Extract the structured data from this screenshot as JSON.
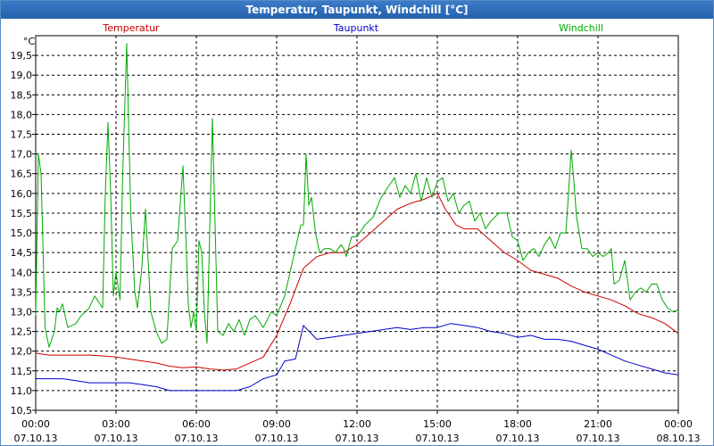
{
  "window": {
    "title": "Temperatur, Taupunkt, Windchill [°C]"
  },
  "chart_data": {
    "type": "line",
    "title": "Temperatur, Taupunkt, Windchill [°C]",
    "ylabel": "°C",
    "xlabel": "",
    "ylim": [
      10.5,
      20.0
    ],
    "xlim": [
      0,
      24
    ],
    "grid": true,
    "y_ticks": [
      "10,5",
      "11,0",
      "11,5",
      "12,0",
      "12,5",
      "13,0",
      "13,5",
      "14,0",
      "14,5",
      "15,0",
      "15,5",
      "16,0",
      "16,5",
      "17,0",
      "17,5",
      "18,0",
      "18,5",
      "19,0",
      "19,5"
    ],
    "x_ticks": [
      {
        "time": "00:00",
        "date": "07.10.13"
      },
      {
        "time": "03:00",
        "date": "07.10.13"
      },
      {
        "time": "06:00",
        "date": "07.10.13"
      },
      {
        "time": "09:00",
        "date": "07.10.13"
      },
      {
        "time": "12:00",
        "date": "07.10.13"
      },
      {
        "time": "15:00",
        "date": "07.10.13"
      },
      {
        "time": "18:00",
        "date": "07.10.13"
      },
      {
        "time": "21:00",
        "date": "07.10.13"
      },
      {
        "time": "00:00",
        "date": "08.10.13"
      }
    ],
    "series": [
      {
        "name": "Temperatur",
        "color": "#cc0000",
        "x": [
          0,
          0.5,
          1,
          1.5,
          2,
          2.5,
          3,
          3.5,
          4,
          4.5,
          5,
          5.5,
          6,
          6.5,
          7,
          7.5,
          8,
          8.5,
          9,
          9.5,
          10,
          10.5,
          11,
          11.5,
          12,
          12.5,
          13,
          13.5,
          14,
          14.5,
          15,
          15.3,
          15.7,
          16,
          16.5,
          17,
          17.5,
          18,
          18.5,
          19,
          19.5,
          20,
          20.5,
          21,
          21.5,
          22,
          22.5,
          23,
          23.5,
          24
        ],
        "values": [
          11.95,
          11.9,
          11.9,
          11.9,
          11.9,
          11.88,
          11.85,
          11.8,
          11.75,
          11.7,
          11.62,
          11.58,
          11.6,
          11.55,
          11.52,
          11.55,
          11.7,
          11.85,
          12.4,
          13.2,
          14.1,
          14.4,
          14.5,
          14.5,
          14.7,
          15.0,
          15.3,
          15.6,
          15.75,
          15.85,
          16.0,
          15.6,
          15.2,
          15.1,
          15.1,
          14.8,
          14.5,
          14.3,
          14.05,
          13.95,
          13.85,
          13.65,
          13.5,
          13.4,
          13.3,
          13.15,
          12.95,
          12.85,
          12.7,
          12.45
        ]
      },
      {
        "name": "Taupunkt",
        "color": "#0000cc",
        "x": [
          0,
          0.5,
          1,
          1.5,
          2,
          2.5,
          3,
          3.5,
          4,
          4.5,
          5,
          5.5,
          6,
          6.5,
          7,
          7.5,
          8,
          8.5,
          9,
          9.3,
          9.7,
          10,
          10.5,
          11,
          11.5,
          12,
          12.5,
          13,
          13.5,
          14,
          14.5,
          15,
          15.5,
          16,
          16.5,
          17,
          17.5,
          18,
          18.5,
          19,
          19.5,
          20,
          20.5,
          21,
          21.5,
          22,
          22.5,
          23,
          23.5,
          24
        ],
        "values": [
          11.3,
          11.3,
          11.3,
          11.25,
          11.2,
          11.2,
          11.2,
          11.2,
          11.15,
          11.1,
          11.0,
          11.0,
          11.0,
          11.0,
          11.0,
          11.0,
          11.1,
          11.3,
          11.4,
          11.75,
          11.8,
          12.65,
          12.3,
          12.35,
          12.4,
          12.45,
          12.5,
          12.55,
          12.6,
          12.55,
          12.6,
          12.6,
          12.7,
          12.65,
          12.6,
          12.5,
          12.45,
          12.35,
          12.4,
          12.3,
          12.3,
          12.25,
          12.15,
          12.05,
          11.9,
          11.75,
          11.65,
          11.55,
          11.45,
          11.4
        ]
      },
      {
        "name": "Windchill",
        "color": "#00aa00",
        "x": [
          0,
          0.1,
          0.2,
          0.35,
          0.5,
          0.7,
          0.8,
          0.9,
          1.0,
          1.2,
          1.5,
          1.7,
          2.0,
          2.2,
          2.4,
          2.5,
          2.6,
          2.7,
          2.8,
          2.9,
          3.0,
          3.15,
          3.25,
          3.4,
          3.55,
          3.7,
          3.8,
          3.95,
          4.1,
          4.3,
          4.5,
          4.7,
          4.9,
          5.1,
          5.3,
          5.5,
          5.6,
          5.7,
          5.8,
          5.9,
          6.0,
          6.1,
          6.2,
          6.3,
          6.4,
          6.6,
          6.8,
          7.0,
          7.2,
          7.4,
          7.6,
          7.8,
          8.0,
          8.2,
          8.5,
          8.8,
          9.0,
          9.3,
          9.5,
          9.7,
          9.9,
          10.0,
          10.1,
          10.2,
          10.3,
          10.45,
          10.6,
          10.8,
          11.0,
          11.2,
          11.4,
          11.5,
          11.6,
          11.8,
          12.0,
          12.3,
          12.6,
          12.9,
          13.2,
          13.4,
          13.6,
          13.8,
          14.0,
          14.2,
          14.4,
          14.6,
          14.8,
          15.0,
          15.2,
          15.4,
          15.6,
          15.8,
          16.0,
          16.2,
          16.4,
          16.6,
          16.8,
          17.0,
          17.3,
          17.6,
          17.8,
          18.0,
          18.2,
          18.4,
          18.6,
          18.8,
          19.0,
          19.2,
          19.4,
          19.6,
          19.8,
          19.9,
          20.0,
          20.1,
          20.2,
          20.3,
          20.4,
          20.6,
          20.8,
          21.0,
          21.2,
          21.4,
          21.5,
          21.6,
          21.8,
          22.0,
          22.2,
          22.4,
          22.6,
          22.8,
          23.0,
          23.2,
          23.4,
          23.6,
          23.8,
          24.0
        ],
        "values": [
          12.9,
          17.0,
          16.5,
          12.6,
          12.1,
          12.5,
          13.1,
          13.0,
          13.2,
          12.6,
          12.7,
          12.9,
          13.1,
          13.4,
          13.2,
          13.1,
          16.0,
          17.8,
          16.0,
          13.4,
          14.0,
          13.3,
          16.5,
          19.8,
          15.5,
          13.5,
          13.1,
          14.0,
          15.6,
          13.0,
          12.5,
          12.2,
          12.3,
          14.6,
          14.8,
          16.7,
          15.0,
          13.2,
          12.6,
          13.0,
          12.5,
          14.8,
          14.5,
          13.0,
          12.2,
          17.9,
          12.5,
          12.4,
          12.7,
          12.5,
          12.8,
          12.4,
          12.8,
          12.9,
          12.6,
          13.0,
          12.9,
          13.4,
          14.0,
          14.6,
          15.2,
          15.2,
          17.0,
          15.7,
          15.9,
          15.0,
          14.5,
          14.6,
          14.6,
          14.5,
          14.7,
          14.6,
          14.4,
          14.9,
          14.9,
          15.2,
          15.4,
          15.9,
          16.2,
          16.4,
          15.9,
          16.2,
          16.0,
          16.5,
          15.8,
          16.4,
          15.9,
          16.3,
          16.4,
          15.8,
          16.0,
          15.5,
          15.7,
          15.8,
          15.3,
          15.5,
          15.1,
          15.3,
          15.5,
          15.5,
          14.9,
          14.8,
          14.3,
          14.5,
          14.6,
          14.4,
          14.7,
          14.9,
          14.6,
          15.0,
          15.0,
          16.0,
          17.1,
          16.3,
          15.4,
          15.0,
          14.6,
          14.6,
          14.4,
          14.5,
          14.4,
          14.5,
          14.6,
          13.7,
          13.8,
          14.3,
          13.3,
          13.5,
          13.6,
          13.5,
          13.7,
          13.7,
          13.3,
          13.1,
          13.0,
          13.05
        ]
      }
    ]
  }
}
